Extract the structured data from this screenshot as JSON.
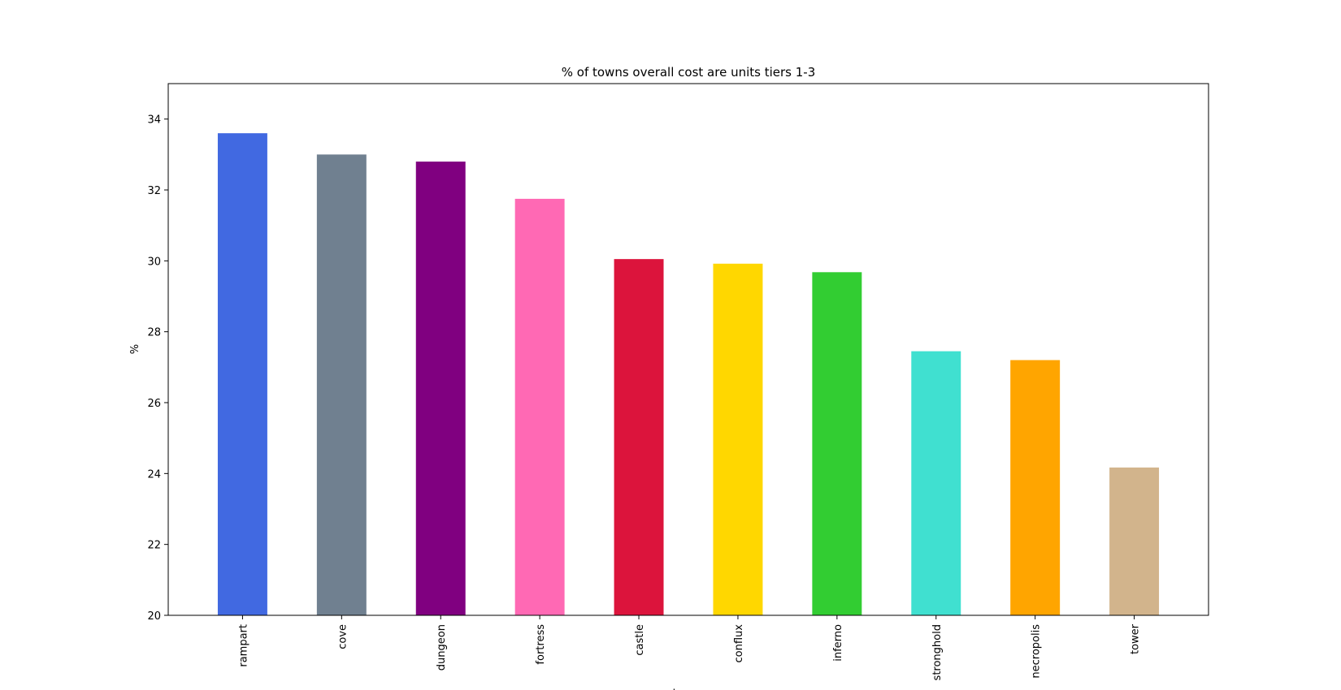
{
  "chart_data": {
    "type": "bar",
    "title": "% of towns overall cost are units tiers 1-3",
    "xlabel": "towns",
    "ylabel": "%",
    "ylim": [
      20,
      35
    ],
    "yticks": [
      20,
      22,
      24,
      26,
      28,
      30,
      32,
      34
    ],
    "grid": false,
    "legend": "none",
    "categories": [
      "rampart",
      "cove",
      "dungeon",
      "fortress",
      "castle",
      "conflux",
      "inferno",
      "stronghold",
      "necropolis",
      "tower"
    ],
    "values": [
      33.6,
      33.0,
      32.8,
      31.75,
      30.05,
      29.92,
      29.68,
      27.45,
      27.2,
      24.17
    ],
    "colors": [
      "#4169e1",
      "#708090",
      "#800080",
      "#ff69b4",
      "#dc143c",
      "#ffd700",
      "#32cd32",
      "#40e0d0",
      "#ffa500",
      "#d2b48c"
    ]
  }
}
